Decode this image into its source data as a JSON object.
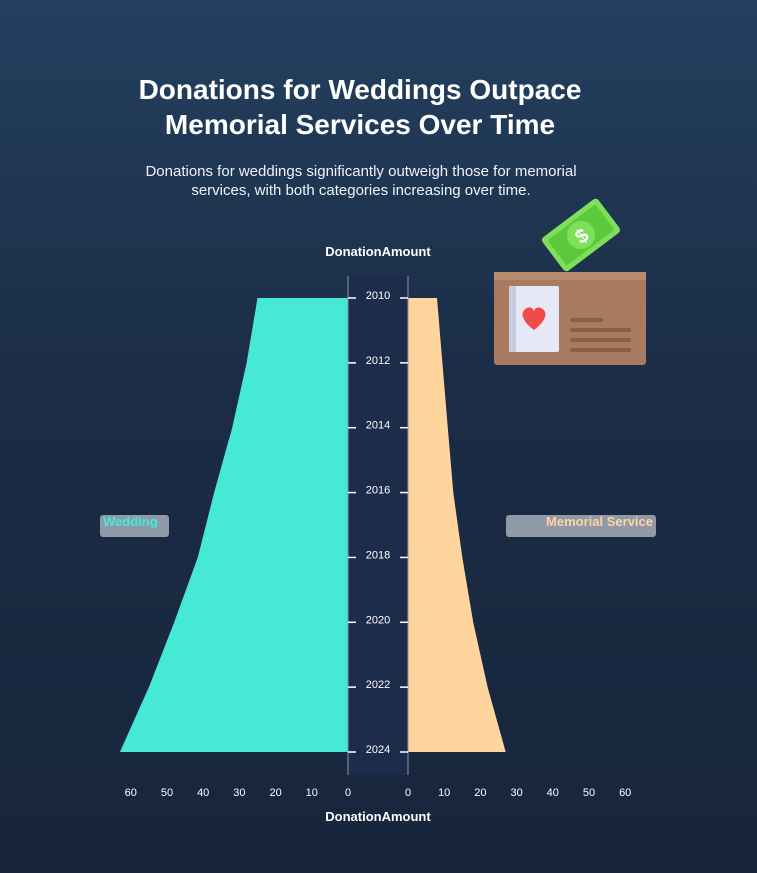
{
  "title_line1": "Donations for Weddings Outpace",
  "title_line2": "Memorial Services Over Time",
  "subtitle_line1": "Donations for weddings significantly outweigh those for memorial",
  "subtitle_line2": "services, with both categories increasing over time.",
  "colors": {
    "wedding": "#46e9d6",
    "memorial": "#ffd59e",
    "center_band": "#1e2c4c",
    "legend_box": "#8f99a8"
  },
  "icon": "donation-box-with-money-icon",
  "chart_data": {
    "type": "area",
    "orientation": "mirrored-horizontal",
    "x_axis_title": "DonationAmount",
    "y_tick_labels": [
      "2010",
      "2012",
      "2014",
      "2016",
      "2018",
      "2020",
      "2022",
      "2024"
    ],
    "left_ticks": [
      "60",
      "50",
      "40",
      "30",
      "20",
      "10",
      "0"
    ],
    "right_ticks": [
      "0",
      "10",
      "20",
      "30",
      "40",
      "50",
      "60"
    ],
    "xlim": [
      0,
      60
    ],
    "ylim": [
      2010,
      2024
    ],
    "grid": false,
    "legend_placement": "middle-left and middle-right",
    "series": [
      {
        "name": "Wedding",
        "side": "left",
        "x": [
          2010,
          2012,
          2014,
          2016,
          2018,
          2020,
          2022,
          2024
        ],
        "values": [
          25,
          28,
          32,
          37,
          41.5,
          48,
          55,
          63
        ]
      },
      {
        "name": "Memorial Service",
        "side": "right",
        "x": [
          2010,
          2012,
          2014,
          2016,
          2018,
          2020,
          2022,
          2024
        ],
        "values": [
          8,
          9.5,
          11,
          12.5,
          15,
          18,
          22,
          27
        ]
      }
    ]
  }
}
